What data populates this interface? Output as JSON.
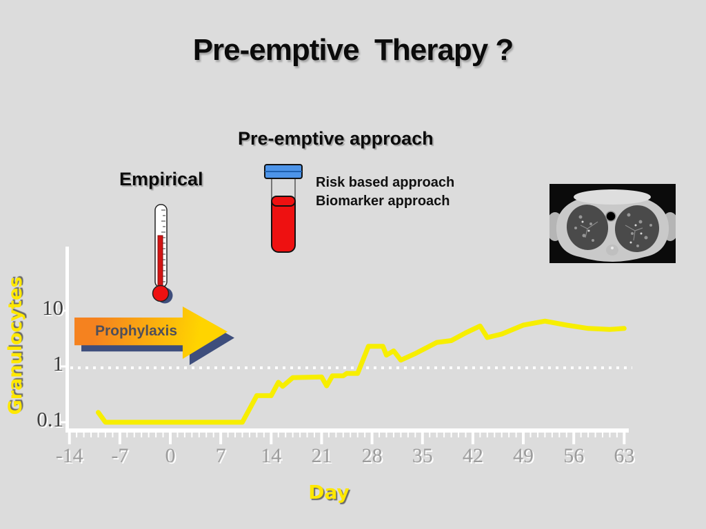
{
  "slide": {
    "title": "Pre-emptive  Therapy ?"
  },
  "headings": {
    "preemptive_approach": "Pre-emptive approach",
    "empirical": "Empirical"
  },
  "annotations": {
    "risk_based": "Risk based approach",
    "biomarker": "Biomarker approach",
    "prophylaxis": "Prophylaxis"
  },
  "icons": {
    "thermometer": "thermometer-icon",
    "blood_tube": "blood-sample-tube-icon",
    "ct_scan": "chest-ct-scan-image"
  },
  "colors": {
    "background": "#DCDCDC",
    "line_yellow": "#F7EE00",
    "axis_white": "#FFFFFF",
    "arrow_orange": "#F5821F",
    "arrow_yellow": "#FFD400",
    "arrow_shadow_navy": "#3E4E7C",
    "blood_red": "#EE1111",
    "cap_blue": "#4D94E8",
    "label_yellow": "#FFE800"
  },
  "chart_data": {
    "type": "line",
    "title": "",
    "xlabel": "Day",
    "ylabel": "Granulocytes",
    "x_axis": {
      "min": -14,
      "max": 63,
      "major_tick_step": 7,
      "minor_tick_step": 1,
      "tick_labels": [
        "-14",
        "-7",
        "0",
        "7",
        "14",
        "21",
        "28",
        "35",
        "42",
        "49",
        "56",
        "63"
      ]
    },
    "y_axis": {
      "scale": "log",
      "tick_labels": [
        "10",
        "1",
        "0.1"
      ],
      "tick_values": [
        10,
        1,
        0.1
      ],
      "range": [
        0.07,
        15
      ]
    },
    "reference_line": {
      "value": 1,
      "style": "dotted",
      "color": "#FFFFFF"
    },
    "grid": false,
    "legend": null,
    "series": [
      {
        "name": "Granulocytes",
        "color": "#F7EE00",
        "points": [
          [
            -10,
            0.15
          ],
          [
            -9,
            0.1
          ],
          [
            10,
            0.1
          ],
          [
            12,
            0.3
          ],
          [
            14,
            0.3
          ],
          [
            15,
            0.52
          ],
          [
            15.6,
            0.44
          ],
          [
            17,
            0.63
          ],
          [
            21,
            0.65
          ],
          [
            21.7,
            0.45
          ],
          [
            22.5,
            0.68
          ],
          [
            24,
            0.68
          ],
          [
            24.5,
            0.75
          ],
          [
            26,
            0.75
          ],
          [
            27.5,
            2.3
          ],
          [
            29.5,
            2.3
          ],
          [
            30,
            1.6
          ],
          [
            31,
            1.9
          ],
          [
            32,
            1.3
          ],
          [
            34,
            1.7
          ],
          [
            37,
            2.7
          ],
          [
            39,
            2.9
          ],
          [
            41,
            4.0
          ],
          [
            43,
            5.3
          ],
          [
            44,
            3.3
          ],
          [
            46,
            3.8
          ],
          [
            49,
            5.5
          ],
          [
            52,
            6.5
          ],
          [
            55,
            5.5
          ],
          [
            58,
            4.8
          ],
          [
            61,
            4.6
          ],
          [
            63,
            4.8
          ]
        ]
      }
    ]
  }
}
